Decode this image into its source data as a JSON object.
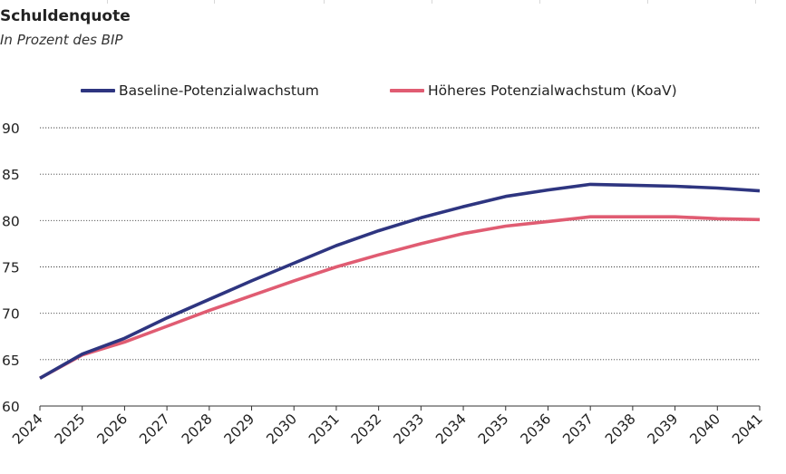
{
  "title": "Schuldenquote",
  "subtitle": "In Prozent des BIP",
  "colors": {
    "baseline": "#2e3580",
    "hoeher": "#e05c72",
    "grid": "#444444",
    "axis": "#333333"
  },
  "chart_data": {
    "type": "line",
    "x": [
      "2024",
      "2025",
      "2026",
      "2027",
      "2028",
      "2029",
      "2030",
      "2031",
      "2032",
      "2033",
      "2034",
      "2035",
      "2036",
      "2037",
      "2038",
      "2039",
      "2040",
      "2041"
    ],
    "ylim": [
      60,
      90
    ],
    "yticks": [
      60,
      65,
      70,
      75,
      80,
      85,
      90
    ],
    "grid": "horizontal dotted",
    "legend_position": "top",
    "series": [
      {
        "name": "Baseline-Potenzialwachstum",
        "color_key": "baseline",
        "values": [
          63.0,
          65.6,
          67.3,
          69.5,
          71.5,
          73.5,
          75.4,
          77.3,
          78.9,
          80.3,
          81.5,
          82.6,
          83.3,
          83.9,
          83.8,
          83.7,
          83.5,
          83.2
        ]
      },
      {
        "name": "Höheres Potenzialwachstum (KoaV)",
        "color_key": "hoeher",
        "values": [
          63.0,
          65.5,
          66.9,
          68.6,
          70.3,
          71.9,
          73.5,
          75.0,
          76.3,
          77.5,
          78.6,
          79.4,
          79.9,
          80.4,
          80.4,
          80.4,
          80.2,
          80.1
        ]
      }
    ]
  }
}
